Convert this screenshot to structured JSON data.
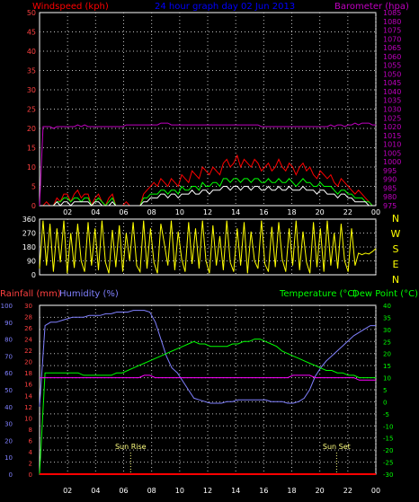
{
  "colors": {
    "wind": "#ff0000",
    "gust": "#ff0000",
    "wind_avg": "#00ff00",
    "wind_mean": "#ffffff",
    "baro": "#c000c0",
    "dir": "#ffff00",
    "rain": "#ff0000",
    "humidity": "#8080ff",
    "temperature": "#00ff00",
    "dewpoint": "#ff00ff",
    "axis": "#ffffff",
    "grid": "#c0c0c0",
    "title": "#0000ff",
    "sun": "#ffff80",
    "rain_label": "#ff4040",
    "hum_label": "#8080ff",
    "temp_label": "#00ff00",
    "baro_label": "#c000c0"
  },
  "chart_data": [
    {
      "type": "line",
      "title": "24 hour graph day  02 Jun 2013",
      "ylabel_left": "Windspeed (kph)",
      "ylabel_right": "Barometer (hpa)",
      "ylim_left": [
        0,
        50
      ],
      "ylim_right": [
        975,
        1085
      ],
      "yticks_left": [
        0,
        5,
        10,
        15,
        20,
        25,
        30,
        35,
        40,
        45,
        50
      ],
      "yticks_right": [
        975,
        980,
        985,
        990,
        995,
        1000,
        1005,
        1010,
        1015,
        1020,
        1025,
        1030,
        1035,
        1040,
        1045,
        1050,
        1055,
        1060,
        1065,
        1070,
        1075,
        1080,
        1085
      ],
      "x_ticks": [
        "02",
        "04",
        "06",
        "08",
        "10",
        "12",
        "14",
        "16",
        "18",
        "20",
        "22",
        "00"
      ],
      "grid": true,
      "series": [
        {
          "key": "gust",
          "values": [
            0,
            0,
            1,
            0,
            0,
            2,
            1,
            3,
            3,
            1,
            3,
            4,
            2,
            3,
            3,
            0,
            2,
            3,
            1,
            0,
            2,
            3,
            0,
            0,
            0,
            1,
            0,
            0,
            0,
            0,
            3,
            4,
            5,
            6,
            5,
            7,
            6,
            5,
            7,
            6,
            5,
            8,
            7,
            6,
            9,
            8,
            7,
            10,
            9,
            8,
            10,
            9,
            8,
            11,
            12,
            10,
            11,
            13,
            10,
            12,
            11,
            10,
            12,
            11,
            9,
            10,
            11,
            9,
            10,
            12,
            10,
            9,
            11,
            10,
            8,
            10,
            11,
            9,
            10,
            8,
            7,
            9,
            8,
            7,
            8,
            6,
            5,
            7,
            6,
            5,
            4,
            3,
            4,
            3,
            2,
            1,
            0,
            0
          ]
        },
        {
          "key": "wind_avg",
          "values": [
            0,
            0,
            0,
            0,
            0,
            1,
            1,
            2,
            2,
            1,
            2,
            2,
            1,
            2,
            2,
            0,
            1,
            2,
            1,
            0,
            1,
            2,
            0,
            0,
            0,
            0,
            0,
            0,
            0,
            0,
            2,
            2,
            3,
            3,
            3,
            4,
            4,
            3,
            4,
            4,
            3,
            5,
            4,
            4,
            5,
            5,
            4,
            6,
            5,
            5,
            6,
            6,
            5,
            7,
            7,
            6,
            7,
            7,
            6,
            7,
            7,
            6,
            7,
            7,
            6,
            6,
            7,
            6,
            6,
            7,
            6,
            6,
            7,
            6,
            5,
            6,
            7,
            6,
            6,
            5,
            5,
            6,
            5,
            5,
            5,
            4,
            3,
            4,
            4,
            3,
            3,
            2,
            2,
            2,
            1,
            1,
            0,
            0
          ]
        },
        {
          "key": "wind_mean",
          "values": [
            0,
            0,
            0,
            0,
            0,
            1,
            0,
            1,
            1,
            0,
            1,
            1,
            1,
            1,
            1,
            0,
            1,
            1,
            0,
            0,
            0,
            1,
            0,
            0,
            0,
            0,
            0,
            0,
            0,
            0,
            1,
            1,
            2,
            2,
            2,
            3,
            3,
            2,
            3,
            3,
            2,
            3,
            3,
            3,
            4,
            3,
            3,
            4,
            4,
            3,
            4,
            4,
            4,
            5,
            5,
            4,
            5,
            5,
            4,
            5,
            5,
            4,
            5,
            5,
            4,
            4,
            5,
            4,
            4,
            5,
            4,
            4,
            5,
            4,
            4,
            4,
            5,
            4,
            4,
            4,
            3,
            4,
            4,
            3,
            3,
            3,
            2,
            3,
            3,
            2,
            2,
            1,
            1,
            1,
            1,
            0,
            0,
            0
          ]
        },
        {
          "key": "baro",
          "values": [
            975,
            1020,
            1020,
            1020,
            1019,
            1020,
            1020,
            1020,
            1020,
            1020,
            1020,
            1021,
            1020,
            1021,
            1020,
            1020,
            1020,
            1020,
            1020,
            1020,
            1020,
            1020,
            1020,
            1020,
            1020,
            1021,
            1021,
            1021,
            1021,
            1021,
            1021,
            1021,
            1021,
            1021,
            1021,
            1022,
            1022,
            1022,
            1021,
            1021,
            1021,
            1021,
            1021,
            1021,
            1021,
            1021,
            1021,
            1021,
            1021,
            1021,
            1021,
            1021,
            1021,
            1021,
            1021,
            1021,
            1021,
            1021,
            1021,
            1021,
            1021,
            1021,
            1021,
            1021,
            1020,
            1020,
            1020,
            1020,
            1020,
            1020,
            1020,
            1020,
            1020,
            1020,
            1020,
            1020,
            1020,
            1020,
            1020,
            1020,
            1020,
            1020,
            1020,
            1020,
            1021,
            1020,
            1021,
            1021,
            1020,
            1021,
            1021,
            1022,
            1021,
            1022,
            1022,
            1022,
            1021,
            1021
          ]
        }
      ]
    },
    {
      "type": "scatter",
      "ylabel_right_letters": [
        "N",
        "W",
        "S",
        "E",
        "N"
      ],
      "ylim": [
        0,
        360
      ],
      "yticks": [
        0,
        90,
        180,
        270,
        360
      ],
      "x_ticks": [
        "02",
        "04",
        "06",
        "08",
        "10",
        "12",
        "14",
        "16",
        "18",
        "20",
        "22",
        "00"
      ],
      "grid": true,
      "series": [
        {
          "key": "dir",
          "values": [
            40,
            350,
            60,
            330,
            20,
            300,
            80,
            350,
            10,
            270,
            45,
            330,
            90,
            20,
            340,
            60,
            300,
            30,
            350,
            80,
            10,
            290,
            50,
            320,
            20,
            270,
            90,
            340,
            60,
            20,
            350,
            40,
            300,
            80,
            10,
            330,
            200,
            60,
            350,
            30,
            280,
            100,
            20,
            340,
            70,
            300,
            40,
            350,
            90,
            10,
            320,
            60,
            250,
            30,
            350,
            80,
            20,
            300,
            60,
            340,
            10,
            280,
            90,
            40,
            350,
            70,
            20,
            310,
            50,
            340,
            100,
            20,
            300,
            60,
            350,
            30,
            280,
            80,
            10,
            340,
            50,
            300,
            20,
            350,
            60,
            270,
            40,
            330,
            90,
            20,
            300,
            60,
            140,
            130,
            140,
            135,
            150,
            170
          ]
        }
      ]
    },
    {
      "type": "line",
      "ylabel_left_rain": "Rainfall (mm)",
      "ylabel_left_humidity": "Humidity (%)",
      "ylabel_right_temp": "Temperature (°C)",
      "ylabel_right_dew": "Dew Point (°C)",
      "ylim_humidity": [
        0,
        100
      ],
      "ylim_rain": [
        0,
        30
      ],
      "ylim_temp": [
        -30,
        40
      ],
      "yticks_humidity": [
        0,
        10,
        20,
        30,
        40,
        50,
        60,
        70,
        80,
        90,
        100
      ],
      "yticks_rain": [
        0,
        2,
        4,
        6,
        8,
        10,
        12,
        14,
        16,
        18,
        20,
        22,
        24,
        26,
        28,
        30
      ],
      "yticks_temp": [
        -30,
        -25,
        -20,
        -15,
        -10,
        -5,
        0,
        5,
        10,
        15,
        20,
        25,
        30,
        35,
        40
      ],
      "x_ticks": [
        "02",
        "04",
        "06",
        "08",
        "10",
        "12",
        "14",
        "16",
        "18",
        "20",
        "22",
        "00"
      ],
      "annotations": [
        {
          "text": "Sun Rise",
          "hour": 6.5
        },
        {
          "text": "Sun Set",
          "hour": 21.2
        }
      ],
      "grid": true,
      "series": [
        {
          "key": "humidity",
          "values": [
            40,
            88,
            90,
            90,
            91,
            92,
            93,
            93,
            93,
            94,
            94,
            94,
            95,
            95,
            96,
            96,
            96,
            97,
            97,
            97,
            96,
            90,
            80,
            70,
            63,
            60,
            55,
            50,
            45,
            44,
            43,
            42,
            42,
            42,
            43,
            43,
            44,
            44,
            44,
            44,
            44,
            44,
            43,
            43,
            43,
            42,
            42,
            43,
            45,
            50,
            58,
            63,
            67,
            70,
            73,
            76,
            79,
            82,
            84,
            86,
            88,
            88
          ]
        },
        {
          "key": "temperature",
          "values": [
            -30,
            12,
            12,
            12,
            12,
            12,
            12,
            12,
            11,
            11,
            11,
            11,
            11,
            11,
            12,
            12,
            13,
            14,
            15,
            16,
            17,
            18,
            19,
            20,
            21,
            22,
            23,
            24,
            25,
            24,
            24,
            23,
            23,
            23,
            23,
            24,
            24,
            25,
            25,
            26,
            26,
            25,
            24,
            23,
            21,
            20,
            19,
            18,
            17,
            16,
            15,
            14,
            13,
            13,
            12,
            12,
            11,
            11,
            10,
            10,
            10,
            10
          ]
        },
        {
          "key": "dewpoint",
          "values": [
            10,
            10,
            10,
            10,
            10,
            10,
            10,
            10,
            10,
            10,
            10,
            10,
            10,
            10,
            10,
            10,
            10,
            10,
            10,
            11,
            11,
            10,
            10,
            10,
            10,
            10,
            10,
            10,
            10,
            10,
            10,
            10,
            10,
            10,
            10,
            10,
            10,
            10,
            10,
            10,
            10,
            10,
            10,
            10,
            10,
            10,
            11,
            11,
            11,
            11,
            10,
            10,
            10,
            10,
            10,
            10,
            10,
            10,
            9,
            9,
            9,
            9
          ]
        },
        {
          "key": "rain",
          "values": [
            0,
            0,
            0,
            0,
            0,
            0,
            0,
            0,
            0,
            0,
            0,
            0,
            0,
            0,
            0,
            0,
            0,
            0,
            0,
            0,
            0,
            0,
            0,
            0,
            0,
            0,
            0,
            0,
            0,
            0,
            0,
            0,
            0,
            0,
            0,
            0,
            0,
            0,
            0,
            0,
            0,
            0,
            0,
            0,
            0,
            0,
            0,
            0,
            0,
            0,
            0,
            0,
            0,
            0,
            0,
            0,
            0,
            0,
            0,
            0,
            0,
            0
          ]
        }
      ]
    }
  ]
}
